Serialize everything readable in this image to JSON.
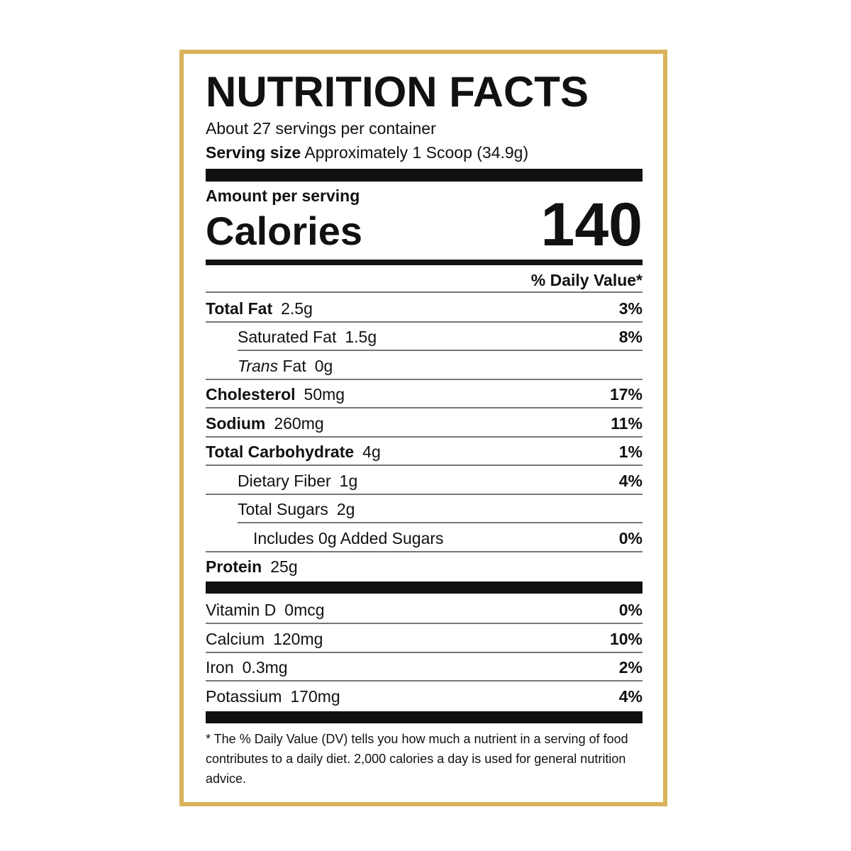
{
  "title": "NUTRITION FACTS",
  "servings_per_container": "About 27 servings per container",
  "serving_size_label": "Serving size",
  "serving_size_value": "Approximately 1 Scoop (34.9g)",
  "amount_per_serving": "Amount per serving",
  "calories_label": "Calories",
  "calories_value": "140",
  "daily_value_header": "% Daily Value*",
  "nutrients": [
    {
      "name": "Total Fat",
      "amount": "2.5g",
      "dv": "3%"
    },
    {
      "name": "Saturated Fat",
      "amount": "1.5g",
      "dv": "8%"
    },
    {
      "name_italic": "Trans",
      "name": "Fat",
      "amount": "0g",
      "dv": ""
    },
    {
      "name": "Cholesterol",
      "amount": "50mg",
      "dv": "17%"
    },
    {
      "name": "Sodium",
      "amount": "260mg",
      "dv": "11%"
    },
    {
      "name": "Total Carbohydrate",
      "amount": "4g",
      "dv": "1%"
    },
    {
      "name": "Dietary Fiber",
      "amount": "1g",
      "dv": "4%"
    },
    {
      "name": "Total Sugars",
      "amount": "2g",
      "dv": ""
    },
    {
      "name": "Includes 0g Added Sugars",
      "amount": "",
      "dv": "0%"
    },
    {
      "name": "Protein",
      "amount": "25g",
      "dv": ""
    }
  ],
  "vitamins": [
    {
      "name": "Vitamin D",
      "amount": "0mcg",
      "dv": "0%"
    },
    {
      "name": "Calcium",
      "amount": "120mg",
      "dv": "10%"
    },
    {
      "name": "Iron",
      "amount": "0.3mg",
      "dv": "2%"
    },
    {
      "name": "Potassium",
      "amount": "170mg",
      "dv": "4%"
    }
  ],
  "footnote": "* The % Daily Value (DV) tells you how much a nutrient in a serving of food contributes to a daily diet. 2,000 calories a day is used for general nutrition advice.",
  "colors": {
    "border": "#d9b25a",
    "ink": "#111111"
  }
}
